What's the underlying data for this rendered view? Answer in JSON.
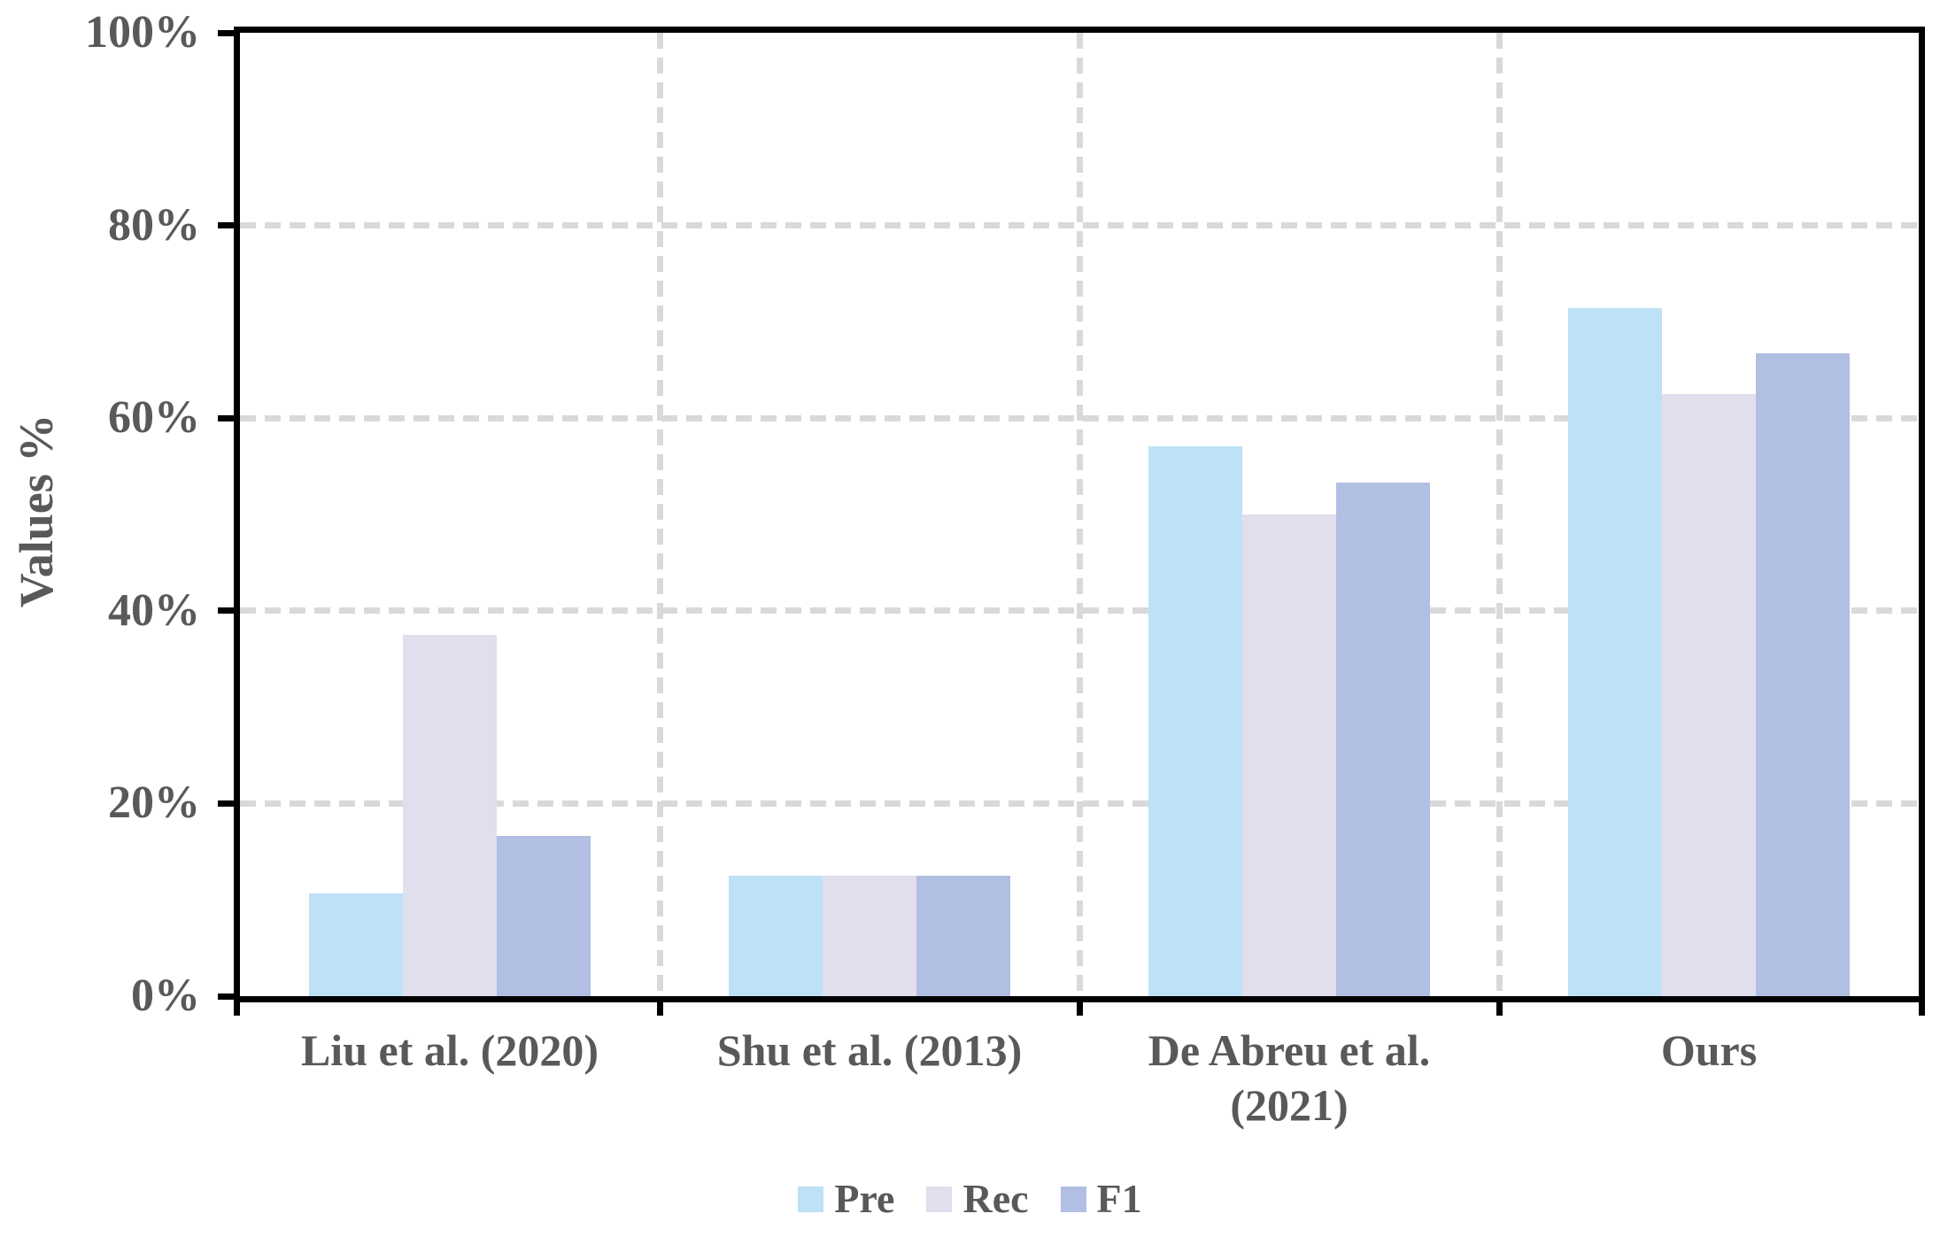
{
  "chart_data": {
    "type": "bar",
    "title": "",
    "ylabel": "Values %",
    "xlabel": "",
    "categories": [
      "Liu et al. (2020)",
      "Shu et al. (2013)",
      "De Abreu et al. (2021)",
      "Ours"
    ],
    "category_label_lines": [
      [
        "Liu et al. (2020)"
      ],
      [
        "Shu et al. (2013)"
      ],
      [
        "De Abreu et al.",
        "(2021)"
      ],
      [
        "Ours"
      ]
    ],
    "series": [
      {
        "name": "Pre",
        "color": "#BDE1F6",
        "values": [
          10.7,
          12.5,
          57.1,
          71.4
        ]
      },
      {
        "name": "Rec",
        "color": "#E1DEED",
        "values": [
          37.5,
          12.5,
          50.0,
          62.5
        ]
      },
      {
        "name": "F1",
        "color": "#B0BFE2",
        "values": [
          16.6,
          12.5,
          53.3,
          66.7
        ]
      }
    ],
    "y_axis": {
      "min": 0,
      "max": 100,
      "tick_step": 20,
      "tick_labels": [
        "0%",
        "20%",
        "40%",
        "60%",
        "80%",
        "100%"
      ]
    },
    "grid": {
      "horizontal": true,
      "vertical": true,
      "style": "dashed",
      "color": "#D9D9D9"
    },
    "legend": {
      "position": "bottom",
      "entries": [
        "Pre",
        "Rec",
        "F1"
      ]
    },
    "frame_color": "#000000",
    "text_color": "#595959"
  }
}
